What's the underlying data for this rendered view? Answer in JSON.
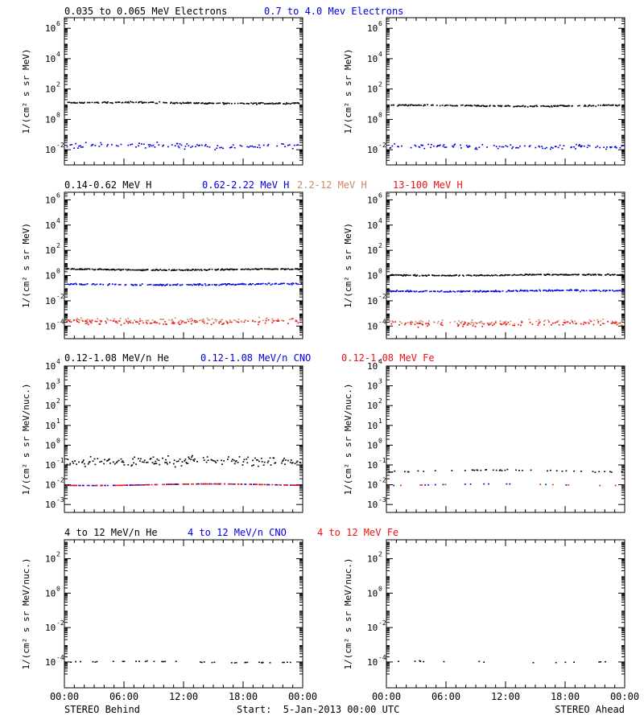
{
  "colors": {
    "black": "#000000",
    "blue": "#0000dd",
    "tan": "#cc8866",
    "red": "#ee1111"
  },
  "chart_data": [
    {
      "type": "scatter",
      "row": 0,
      "col": 0,
      "scale": "log",
      "ylim_exp": [
        -3.0,
        6.7
      ],
      "yticks": [
        {
          "exp": -2,
          "label": "10",
          "sup": "-2"
        },
        {
          "exp": 0,
          "label": "10",
          "sup": "0"
        },
        {
          "exp": 2,
          "label": "10",
          "sup": "2"
        },
        {
          "exp": 4,
          "label": "10",
          "sup": "4"
        },
        {
          "exp": 6,
          "label": "10",
          "sup": "6"
        }
      ],
      "ylabel": "1/(cm² s sr MeV)",
      "series": [
        {
          "name": "0.035 to 0.065 MeV Electrons",
          "color": "black",
          "center": 12,
          "sigma": 0.04,
          "density": 0.6
        },
        {
          "name": "0.7 to 4.0 Mev Electrons",
          "color": "blue",
          "center": 0.018,
          "sigma": 0.14,
          "density": 0.35
        }
      ]
    },
    {
      "type": "scatter",
      "row": 0,
      "col": 1,
      "scale": "log",
      "ylim_exp": [
        -3.0,
        6.7
      ],
      "yticks": [
        {
          "exp": -2,
          "label": "10",
          "sup": "-2"
        },
        {
          "exp": 0,
          "label": "10",
          "sup": "0"
        },
        {
          "exp": 2,
          "label": "10",
          "sup": "2"
        },
        {
          "exp": 4,
          "label": "10",
          "sup": "4"
        },
        {
          "exp": 6,
          "label": "10",
          "sup": "6"
        }
      ],
      "ylabel": "1/(cm² s sr MeV)",
      "series": [
        {
          "name": "",
          "color": "black",
          "center": 8,
          "sigma": 0.04,
          "density": 0.6
        },
        {
          "name": "",
          "color": "blue",
          "center": 0.015,
          "sigma": 0.14,
          "density": 0.35
        }
      ]
    },
    {
      "type": "scatter",
      "row": 1,
      "col": 0,
      "scale": "log",
      "ylim_exp": [
        -5.0,
        6.6
      ],
      "yticks": [
        {
          "exp": -4,
          "label": "10",
          "sup": "-4"
        },
        {
          "exp": -2,
          "label": "10",
          "sup": "-2"
        },
        {
          "exp": 0,
          "label": "10",
          "sup": "0"
        },
        {
          "exp": 2,
          "label": "10",
          "sup": "2"
        },
        {
          "exp": 4,
          "label": "10",
          "sup": "4"
        },
        {
          "exp": 6,
          "label": "10",
          "sup": "6"
        }
      ],
      "ylabel": "1/(cm² s sr MeV)",
      "series": [
        {
          "name": "0.14-0.62 MeV H",
          "color": "black",
          "center": 3,
          "sigma": 0.04,
          "density": 0.7
        },
        {
          "name": "0.62-2.22 MeV H",
          "color": "blue",
          "center": 0.2,
          "sigma": 0.05,
          "density": 0.6
        },
        {
          "name": "2.2-12 MeV H",
          "color": "tan",
          "center": 0.0003,
          "sigma": 0.16,
          "density": 0.35
        },
        {
          "name": "13-100 MeV H",
          "color": "red",
          "center": 0.0002,
          "sigma": 0.16,
          "density": 0.35
        }
      ]
    },
    {
      "type": "scatter",
      "row": 1,
      "col": 1,
      "scale": "log",
      "ylim_exp": [
        -5.0,
        6.6
      ],
      "yticks": [
        {
          "exp": -4,
          "label": "10",
          "sup": "-4"
        },
        {
          "exp": -2,
          "label": "10",
          "sup": "-2"
        },
        {
          "exp": 0,
          "label": "10",
          "sup": "0"
        },
        {
          "exp": 2,
          "label": "10",
          "sup": "2"
        },
        {
          "exp": 4,
          "label": "10",
          "sup": "4"
        },
        {
          "exp": 6,
          "label": "10",
          "sup": "6"
        }
      ],
      "ylabel": "1/(cm² s sr MeV)",
      "series": [
        {
          "name": "",
          "color": "black",
          "center": 1.1,
          "sigma": 0.04,
          "density": 0.7
        },
        {
          "name": "",
          "color": "blue",
          "center": 0.06,
          "sigma": 0.05,
          "density": 0.6
        },
        {
          "name": "",
          "color": "tan",
          "center": 0.0002,
          "sigma": 0.16,
          "density": 0.3
        },
        {
          "name": "",
          "color": "red",
          "center": 0.00015,
          "sigma": 0.16,
          "density": 0.3
        }
      ]
    },
    {
      "type": "scatter",
      "row": 2,
      "col": 0,
      "scale": "log",
      "ylim_exp": [
        -3.4,
        4.0
      ],
      "yticks": [
        {
          "exp": -3,
          "label": "10",
          "sup": "-3"
        },
        {
          "exp": -2,
          "label": "10",
          "sup": "-2"
        },
        {
          "exp": -1,
          "label": "10",
          "sup": "-1"
        },
        {
          "exp": 0,
          "label": "10",
          "sup": "0"
        },
        {
          "exp": 1,
          "label": "10",
          "sup": "1"
        },
        {
          "exp": 2,
          "label": "10",
          "sup": "2"
        },
        {
          "exp": 3,
          "label": "10",
          "sup": "3"
        },
        {
          "exp": 4,
          "label": "10",
          "sup": "4"
        }
      ],
      "ylabel": "1/(cm² s sr MeV/nuc.)",
      "series": [
        {
          "name": "0.12-1.08 MeV/n He",
          "color": "black",
          "center": 0.15,
          "sigma": 0.2,
          "density": 0.55
        },
        {
          "name": "0.12-1.08 MeV/n CNO",
          "color": "blue",
          "center": 0.01,
          "sigma": 0.0,
          "density": 0.35
        },
        {
          "name": "0.12-1.08 MeV Fe",
          "color": "red",
          "center": 0.01,
          "sigma": 0.0,
          "density": 0.3
        }
      ]
    },
    {
      "type": "scatter",
      "row": 2,
      "col": 1,
      "scale": "log",
      "ylim_exp": [
        -3.4,
        4.0
      ],
      "yticks": [
        {
          "exp": -3,
          "label": "10",
          "sup": "-3"
        },
        {
          "exp": -2,
          "label": "10",
          "sup": "-2"
        },
        {
          "exp": -1,
          "label": "10",
          "sup": "-1"
        },
        {
          "exp": 0,
          "label": "10",
          "sup": "0"
        },
        {
          "exp": 1,
          "label": "10",
          "sup": "1"
        },
        {
          "exp": 2,
          "label": "10",
          "sup": "2"
        },
        {
          "exp": 3,
          "label": "10",
          "sup": "3"
        },
        {
          "exp": 4,
          "label": "10",
          "sup": "4"
        }
      ],
      "ylabel": "1/(cm² s sr MeV/nuc.)",
      "series": [
        {
          "name": "",
          "color": "black",
          "center": 0.05,
          "sigma": 0.03,
          "density": 0.18
        },
        {
          "name": "",
          "color": "blue",
          "center": 0.01,
          "sigma": 0.0,
          "density": 0.04
        },
        {
          "name": "",
          "color": "red",
          "center": 0.01,
          "sigma": 0.0,
          "density": 0.03
        }
      ]
    },
    {
      "type": "scatter",
      "row": 3,
      "col": 0,
      "scale": "log",
      "ylim_exp": [
        -5.5,
        3.1
      ],
      "yticks": [
        {
          "exp": -4,
          "label": "10",
          "sup": "-4"
        },
        {
          "exp": -2,
          "label": "10",
          "sup": "-2"
        },
        {
          "exp": 0,
          "label": "10",
          "sup": "0"
        },
        {
          "exp": 2,
          "label": "10",
          "sup": "2"
        }
      ],
      "ylabel": "1/(cm² s sr MeV/nuc.)",
      "series": [
        {
          "name": "4 to 12 MeV/n He",
          "color": "black",
          "center": 0.0001,
          "sigma": 0.02,
          "density": 0.1
        },
        {
          "name": "4 to 12 MeV/n CNO",
          "color": "blue",
          "center": 0.0001,
          "sigma": 0.0,
          "density": 0
        },
        {
          "name": "4 to 12 MeV Fe",
          "color": "red",
          "center": 0.0001,
          "sigma": 0.0,
          "density": 0
        }
      ]
    },
    {
      "type": "scatter",
      "row": 3,
      "col": 1,
      "scale": "log",
      "ylim_exp": [
        -5.5,
        3.1
      ],
      "yticks": [
        {
          "exp": -4,
          "label": "10",
          "sup": "-4"
        },
        {
          "exp": -2,
          "label": "10",
          "sup": "-2"
        },
        {
          "exp": 0,
          "label": "10",
          "sup": "0"
        },
        {
          "exp": 2,
          "label": "10",
          "sup": "2"
        }
      ],
      "ylabel": "1/(cm² s sr MeV/nuc.)",
      "series": [
        {
          "name": "",
          "color": "black",
          "center": 0.0001,
          "sigma": 0.02,
          "density": 0.05
        }
      ]
    }
  ],
  "xaxis": {
    "ticks": [
      "00:00",
      "06:00",
      "12:00",
      "18:00",
      "00:00"
    ],
    "left_caption": "STEREO Behind",
    "center_caption": "Start:  5-Jan-2013 00:00 UTC",
    "right_caption": "STEREO Ahead"
  }
}
